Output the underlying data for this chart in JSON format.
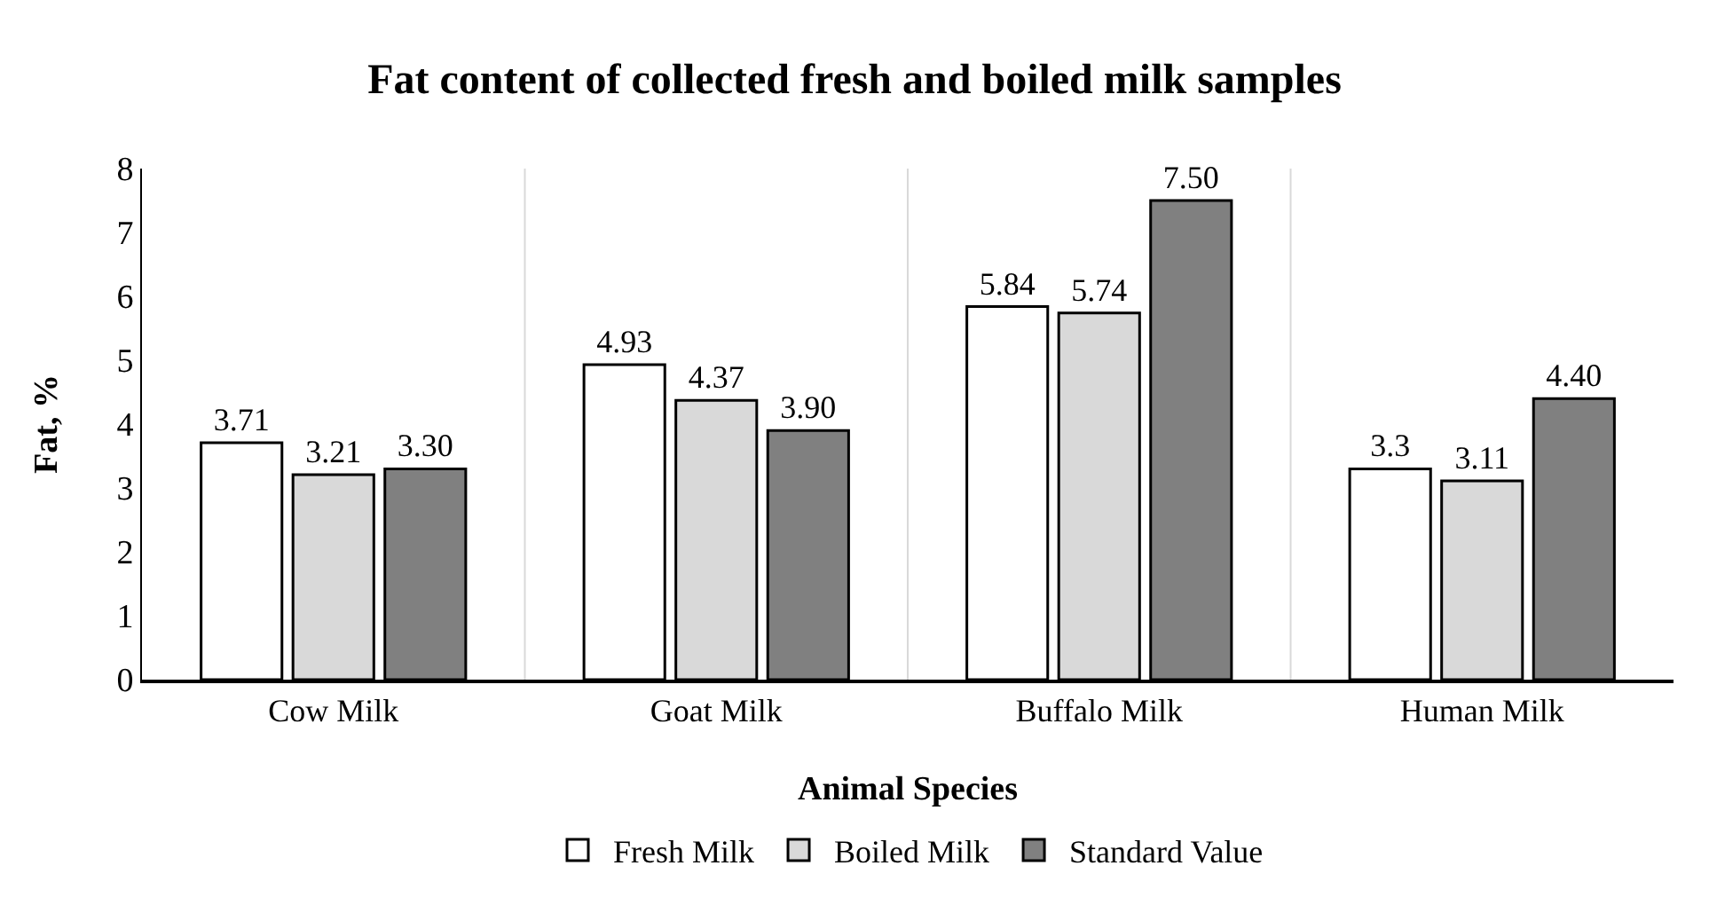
{
  "chart_data": {
    "type": "bar",
    "title": "Fat content of collected fresh and boiled milk samples",
    "xlabel": "Animal Species",
    "ylabel": "Fat, %",
    "categories": [
      "Cow Milk",
      "Goat Milk",
      "Buffalo Milk",
      "Human Milk"
    ],
    "series": [
      {
        "name": "Fresh Milk",
        "color": "#ffffff",
        "values": [
          3.71,
          4.93,
          5.84,
          3.3
        ],
        "value_labels": [
          "3.71",
          "4.93",
          "5.84",
          "3.3"
        ]
      },
      {
        "name": "Boiled Milk",
        "color": "#d9d9d9",
        "values": [
          3.21,
          4.37,
          5.74,
          3.11
        ],
        "value_labels": [
          "3.21",
          "4.37",
          "5.74",
          "3.11"
        ]
      },
      {
        "name": "Standard Value",
        "color": "#808080",
        "values": [
          3.3,
          3.9,
          7.5,
          4.4
        ],
        "value_labels": [
          "3.30",
          "3.90",
          "7.50",
          "4.40"
        ]
      }
    ],
    "ylim": [
      0,
      8
    ],
    "yticks": [
      0,
      1,
      2,
      3,
      4,
      5,
      6,
      7,
      8
    ],
    "grid": "x",
    "legend": "bottom"
  }
}
